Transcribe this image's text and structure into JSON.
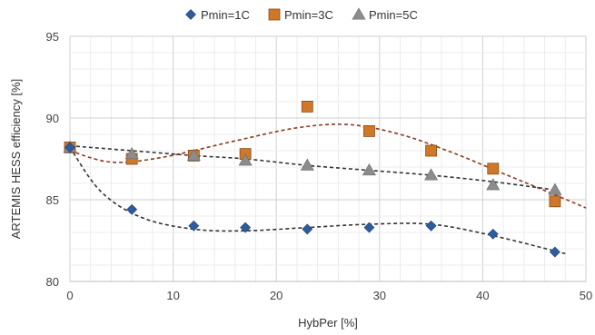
{
  "chart_data": {
    "type": "scatter",
    "title": "",
    "xlabel": "HybPer [%]",
    "ylabel": "ARTEMIS HESS efficiency [%]",
    "xlim": [
      0,
      50
    ],
    "ylim": [
      80,
      95
    ],
    "x_ticks": [
      "0",
      "10",
      "20",
      "30",
      "40",
      "50"
    ],
    "y_ticks": [
      "80",
      "85",
      "90",
      "95"
    ],
    "grid": true,
    "legend_position": "top",
    "series": [
      {
        "name": "Pmin=1C",
        "marker": "diamond",
        "color": "#2e5c9e",
        "trend_color": "#333333",
        "x": [
          0,
          6,
          12,
          17,
          23,
          29,
          35,
          41,
          47
        ],
        "y": [
          88.2,
          84.4,
          83.4,
          83.3,
          83.2,
          83.3,
          83.4,
          82.9,
          81.8
        ],
        "trend": [
          [
            0,
            88.2
          ],
          [
            3,
            85.5
          ],
          [
            7,
            83.9
          ],
          [
            12,
            83.2
          ],
          [
            17,
            83.1
          ],
          [
            23,
            83.3
          ],
          [
            29,
            83.5
          ],
          [
            35,
            83.5
          ],
          [
            41,
            82.8
          ],
          [
            48,
            81.7
          ]
        ]
      },
      {
        "name": "Pmin=3C",
        "marker": "square",
        "color": "#d0782a",
        "trend_color": "#8b3a1e",
        "x": [
          0,
          6,
          12,
          17,
          23,
          29,
          35,
          41,
          47
        ],
        "y": [
          88.2,
          87.5,
          87.7,
          87.8,
          90.7,
          89.2,
          88.0,
          86.9,
          84.9
        ],
        "trend": [
          [
            0,
            88.0
          ],
          [
            4,
            87.3
          ],
          [
            9,
            87.6
          ],
          [
            16,
            88.6
          ],
          [
            22,
            89.4
          ],
          [
            27,
            89.6
          ],
          [
            32,
            89.0
          ],
          [
            37,
            87.9
          ],
          [
            42,
            86.6
          ],
          [
            47,
            85.3
          ],
          [
            50,
            84.5
          ]
        ]
      },
      {
        "name": "Pmin=5C",
        "marker": "triangle",
        "color": "#8c8c8c",
        "trend_color": "#333333",
        "x": [
          0,
          6,
          12,
          17,
          23,
          29,
          35,
          41,
          47
        ],
        "y": [
          88.2,
          87.8,
          87.7,
          87.4,
          87.1,
          86.8,
          86.5,
          85.9,
          85.6
        ],
        "trend": [
          [
            0,
            88.3
          ],
          [
            6,
            88.0
          ],
          [
            12,
            87.7
          ],
          [
            17,
            87.5
          ],
          [
            23,
            87.1
          ],
          [
            29,
            86.8
          ],
          [
            35,
            86.5
          ],
          [
            41,
            86.1
          ],
          [
            47,
            85.6
          ]
        ]
      }
    ]
  }
}
